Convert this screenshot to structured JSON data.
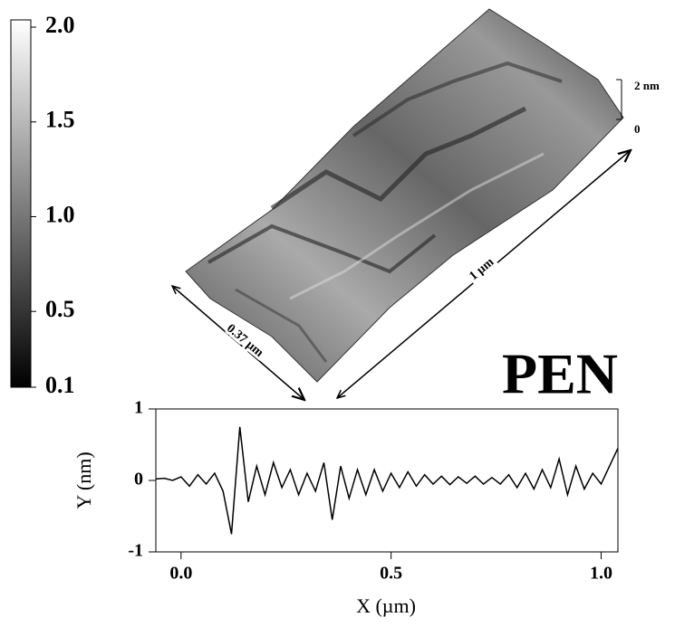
{
  "title": "PEN",
  "colorbar": {
    "lim": [
      0.1,
      2.0
    ],
    "ticks": [
      {
        "value": 2.0,
        "label": "2.0"
      },
      1.5,
      {
        "value": 1.0,
        "label": "1.0"
      },
      0.5,
      0.1
    ]
  },
  "surface": {
    "height_labels": [
      "2 nm",
      "0"
    ],
    "length_label": "1 µm",
    "width_label": "0.37 µm"
  },
  "chart_data": {
    "type": "line",
    "xlabel": "X (µm)",
    "ylabel": "Y (nm)",
    "color": "#000000",
    "x": [
      -0.06,
      -0.04,
      -0.02,
      0.0,
      0.02,
      0.04,
      0.06,
      0.08,
      0.1,
      0.12,
      0.14,
      0.16,
      0.18,
      0.2,
      0.22,
      0.24,
      0.26,
      0.28,
      0.3,
      0.32,
      0.34,
      0.36,
      0.38,
      0.4,
      0.42,
      0.44,
      0.46,
      0.48,
      0.5,
      0.52,
      0.54,
      0.56,
      0.58,
      0.6,
      0.62,
      0.64,
      0.66,
      0.68,
      0.7,
      0.72,
      0.74,
      0.76,
      0.78,
      0.8,
      0.82,
      0.84,
      0.86,
      0.88,
      0.9,
      0.92,
      0.94,
      0.96,
      0.98,
      1.0,
      1.02,
      1.04
    ],
    "values": [
      0.02,
      0.03,
      0.0,
      0.05,
      -0.08,
      0.08,
      -0.05,
      0.1,
      -0.15,
      -0.75,
      0.75,
      -0.3,
      0.2,
      -0.2,
      0.25,
      -0.1,
      0.15,
      -0.2,
      0.1,
      -0.15,
      0.25,
      -0.55,
      0.2,
      -0.25,
      0.15,
      -0.2,
      0.15,
      -0.15,
      0.1,
      -0.1,
      0.12,
      -0.08,
      0.08,
      -0.05,
      0.06,
      -0.06,
      0.05,
      -0.04,
      0.06,
      -0.05,
      0.04,
      -0.05,
      0.08,
      -0.1,
      0.1,
      -0.12,
      0.15,
      -0.1,
      0.3,
      -0.2,
      0.2,
      -0.12,
      0.1,
      -0.05,
      0.2,
      0.45
    ],
    "xlim": [
      -0.06,
      1.04
    ],
    "ylim": [
      -1,
      1
    ],
    "xticks": [
      {
        "value": 0.0,
        "label": "0.0"
      },
      0.5,
      {
        "value": 1.0,
        "label": "1.0"
      }
    ],
    "yticks": [
      1,
      0,
      -1
    ]
  }
}
